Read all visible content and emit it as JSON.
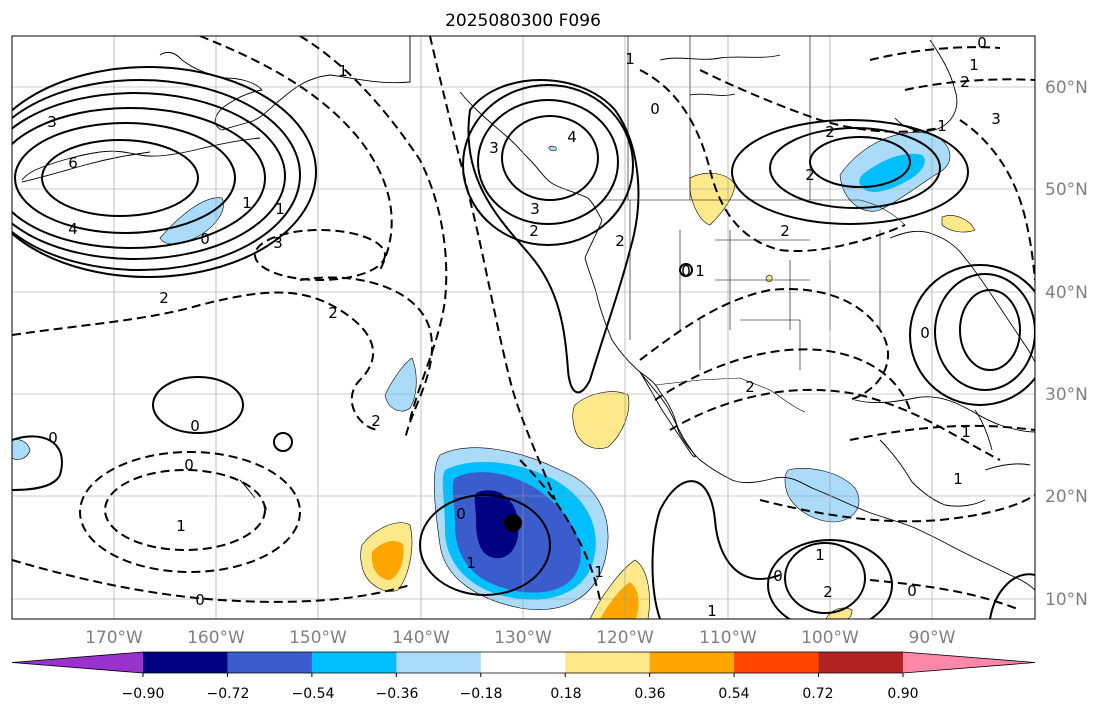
{
  "title": "2025080300 F096",
  "map": {
    "lon_range": [
      -180,
      -80
    ],
    "lat_range": [
      8,
      65
    ],
    "gridlines": true,
    "lon_labels": [
      "170°W",
      "160°W",
      "150°W",
      "140°W",
      "130°W",
      "120°W",
      "110°W",
      "100°W",
      "90°W"
    ],
    "lat_labels": [
      "60°N",
      "50°N",
      "40°N",
      "30°N",
      "20°N",
      "10°N"
    ],
    "marker": {
      "lon": -128.5,
      "lat": 17.2
    }
  },
  "contour_labels": [
    "3",
    "6",
    "4",
    "1",
    "0",
    "1",
    "3",
    "2",
    "2",
    "1",
    "2",
    "3",
    "4",
    "3",
    "2",
    "2",
    "0",
    "1",
    "2",
    "2",
    "1",
    "0",
    "0",
    "1",
    "0",
    "0",
    "0",
    "2",
    "1",
    "0",
    "2",
    "1",
    "0",
    "1",
    "1",
    "0",
    "1",
    "0",
    "1",
    "2",
    "1",
    "0",
    "3",
    "1",
    "2"
  ],
  "colorbar": {
    "ticks": [
      "−0.90",
      "−0.72",
      "−0.54",
      "−0.36",
      "−0.18",
      "0.18",
      "0.36",
      "0.54",
      "0.72",
      "0.90"
    ],
    "colors": [
      "#9932cc",
      "#000080",
      "#3a5ccc",
      "#00bfff",
      "#aadcfa",
      "#ffffff",
      "#ffe98a",
      "#ffa500",
      "#ff4500",
      "#b22222",
      "#ff88aa"
    ]
  }
}
